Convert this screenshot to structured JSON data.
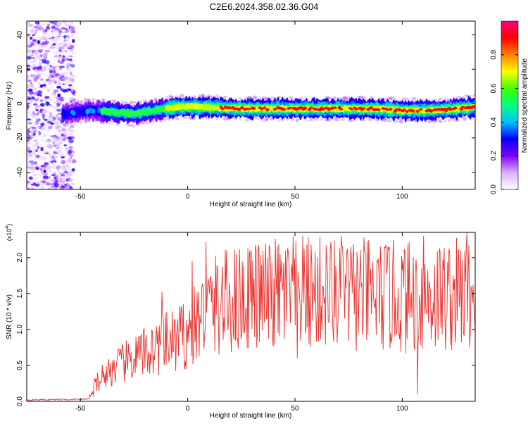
{
  "title": "C2E6.2024.358.02.36.G04",
  "chart_data": [
    {
      "type": "heatmap",
      "xlabel": "Height of straight line (km)",
      "ylabel": "Frequency (Hz)",
      "xlim": [
        -75,
        134
      ],
      "ylim": [
        -50,
        48
      ],
      "x_ticks": [
        -50,
        0,
        50,
        100
      ],
      "y_ticks": [
        -40,
        -20,
        0,
        20,
        40
      ],
      "colorbar": {
        "label": "Normalized spectral amplitude",
        "range": [
          0,
          1
        ],
        "ticks": [
          "0.0",
          "0.2",
          "0.4",
          "0.6",
          "0.8"
        ],
        "colors": [
          "#ffffff",
          "#d8b0ff",
          "#8000ff",
          "#0000ff",
          "#00c0ff",
          "#00ff80",
          "#40ff00",
          "#ffff00",
          "#ff8000",
          "#ff0000",
          "#ff0080"
        ]
      },
      "ridge": [
        {
          "x": -57,
          "f": -6
        },
        {
          "x": -45,
          "f": -4
        },
        {
          "x": -35,
          "f": -5
        },
        {
          "x": -25,
          "f": -6
        },
        {
          "x": -15,
          "f": -4
        },
        {
          "x": -5,
          "f": -2
        },
        {
          "x": 10,
          "f": -2
        },
        {
          "x": 25,
          "f": -3
        },
        {
          "x": 45,
          "f": -3
        },
        {
          "x": 65,
          "f": -3
        },
        {
          "x": 85,
          "f": -3
        },
        {
          "x": 100,
          "f": -4
        },
        {
          "x": 115,
          "f": -4
        },
        {
          "x": 125,
          "f": -3
        },
        {
          "x": 134,
          "f": -2
        }
      ]
    },
    {
      "type": "line",
      "xlabel": "Height of straight line (km)",
      "ylabel": "SNR (10 * v/v)",
      "y_multiplier": "(x10",
      "y_multiplier_exp": "4",
      "xlim": [
        -75,
        134
      ],
      "ylim": [
        0,
        2.35
      ],
      "x_ticks": [
        -50,
        0,
        50,
        100
      ],
      "y_ticks": [
        "0.0",
        "0.5",
        "1.0",
        "1.5",
        "2.0"
      ],
      "line_color": "#e8322e",
      "envelope": [
        {
          "x": -75,
          "y": 0.02
        },
        {
          "x": -46,
          "y": 0.03
        },
        {
          "x": -42,
          "y": 0.3
        },
        {
          "x": -35,
          "y": 0.45
        },
        {
          "x": -25,
          "y": 0.6
        },
        {
          "x": -15,
          "y": 0.75
        },
        {
          "x": -5,
          "y": 0.85
        },
        {
          "x": 0,
          "y": 0.95
        },
        {
          "x": 5,
          "y": 1.1
        },
        {
          "x": 10,
          "y": 1.3
        },
        {
          "x": 20,
          "y": 1.4
        },
        {
          "x": 30,
          "y": 1.45
        },
        {
          "x": 50,
          "y": 1.5
        },
        {
          "x": 70,
          "y": 1.5
        },
        {
          "x": 90,
          "y": 1.45
        },
        {
          "x": 110,
          "y": 1.45
        },
        {
          "x": 134,
          "y": 1.5
        }
      ],
      "peaks": [
        {
          "x": 8.5,
          "y": 2.22
        },
        {
          "x": 2,
          "y": 1.95
        },
        {
          "x": 29,
          "y": 2.1
        },
        {
          "x": 38,
          "y": 2.17
        },
        {
          "x": 72,
          "y": 2.15
        },
        {
          "x": 94,
          "y": 2.15
        },
        {
          "x": 110,
          "y": 2.3
        },
        {
          "x": 130,
          "y": 2.35
        },
        {
          "x": -12,
          "y": 1.52
        },
        {
          "x": 107,
          "y": 0.1
        },
        {
          "x": 51,
          "y": 0.6
        }
      ]
    }
  ]
}
